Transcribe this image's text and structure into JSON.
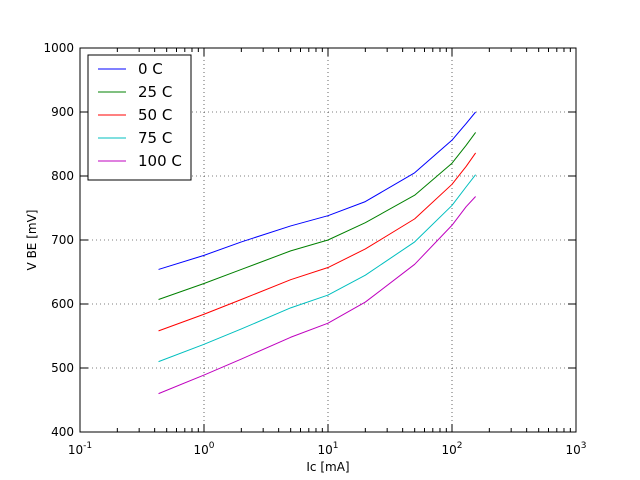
{
  "chart_data": {
    "type": "line",
    "title": "",
    "xlabel": "Ic [mA]",
    "ylabel": "V BE [mV]",
    "xscale": "log",
    "xlim": [
      0.1,
      1000
    ],
    "ylim": [
      400,
      1000
    ],
    "grid": true,
    "legend_position": "top-left",
    "x_tick_labels": [
      {
        "value": 0.1,
        "base": "10",
        "exp": "-1"
      },
      {
        "value": 1,
        "base": "10",
        "exp": "0"
      },
      {
        "value": 10,
        "base": "10",
        "exp": "1"
      },
      {
        "value": 100,
        "base": "10",
        "exp": "2"
      },
      {
        "value": 1000,
        "base": "10",
        "exp": "3"
      }
    ],
    "y_ticks": [
      400,
      500,
      600,
      700,
      800,
      900,
      1000
    ],
    "x": [
      0.43,
      1,
      2,
      5,
      10,
      20,
      50,
      100,
      130,
      155
    ],
    "series": [
      {
        "name": "0 C",
        "color": "#0000ff",
        "values": [
          654,
          676,
          697,
          722,
          738,
          760,
          805,
          856,
          882,
          900
        ]
      },
      {
        "name": "25 C",
        "color": "#008000",
        "values": [
          607,
          632,
          654,
          683,
          700,
          727,
          770,
          820,
          848,
          868
        ]
      },
      {
        "name": "50 C",
        "color": "#ff0000",
        "values": [
          558,
          584,
          607,
          638,
          657,
          686,
          733,
          787,
          815,
          836
        ]
      },
      {
        "name": "75 C",
        "color": "#00bfbf",
        "values": [
          510,
          537,
          561,
          594,
          614,
          645,
          697,
          754,
          783,
          802
        ]
      },
      {
        "name": "100 C",
        "color": "#bf00bf",
        "values": [
          460,
          489,
          514,
          548,
          570,
          603,
          662,
          723,
          752,
          768
        ]
      }
    ]
  }
}
